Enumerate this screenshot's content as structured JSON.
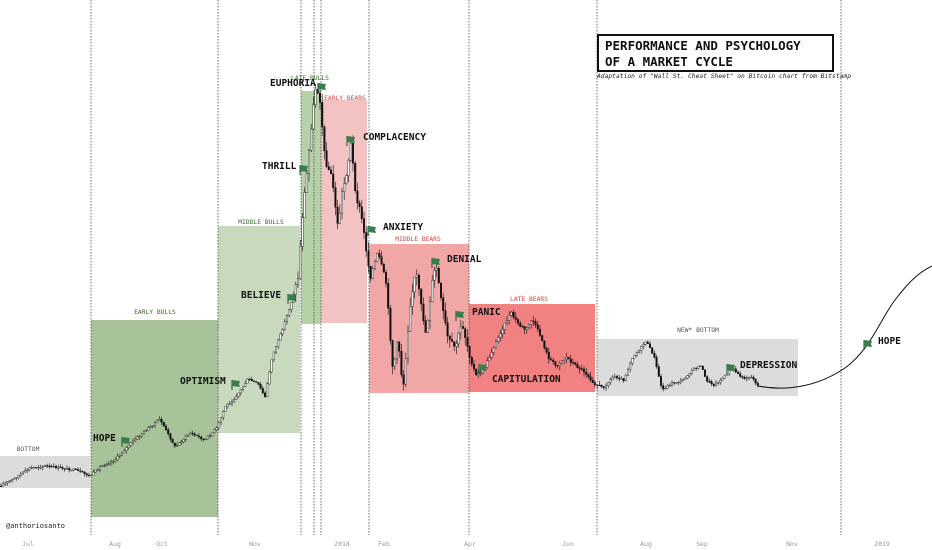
{
  "title": "PERFORMANCE AND PSYCHOLOGY\nOF A MARKET CYCLE",
  "subtitle": "Adaptation of \"Wall St. Cheat Sheet\" on Bitcoin chart from Bitstamp",
  "credit": "@anthoriosanto",
  "colors": {
    "bull_early": "#a8c39a",
    "bull_middle": "#c9d9be",
    "bull_late": "#b6d1a8",
    "bear_early": "#f3c2c2",
    "bear_middle": "#f2a7a7",
    "bear_late": "#f28282",
    "bottom": "#dcdcdc",
    "flag": "#3a7d4d",
    "bull_text": "#3a6b2c",
    "bear_text": "#d04848",
    "neutral_text": "#555555"
  },
  "chart_data": {
    "type": "line",
    "x_axis_ticks": [
      "Jul",
      "Aug",
      "Oct",
      "Nov",
      "2018",
      "Feb",
      "Apr",
      "Jun",
      "Aug",
      "Sep",
      "Nov",
      "2019"
    ],
    "zones": [
      {
        "label": "BOTTOM",
        "kind": "bottom"
      },
      {
        "label": "EARLY BULLS",
        "kind": "bull_early"
      },
      {
        "label": "MIDDLE BULLS",
        "kind": "bull_middle"
      },
      {
        "label": "LATE BULLS",
        "kind": "bull_late"
      },
      {
        "label": "EARLY BEARS",
        "kind": "bear_early"
      },
      {
        "label": "MIDDLE BEARS",
        "kind": "bear_middle"
      },
      {
        "label": "LATE BEARS",
        "kind": "bear_late"
      },
      {
        "label": "NEW* BOTTOM",
        "kind": "bottom"
      }
    ],
    "stages": [
      "HOPE",
      "OPTIMISM",
      "BELIEVE",
      "THRILL",
      "EUPHORIA",
      "COMPLACENCY",
      "ANXIETY",
      "DENIAL",
      "PANIC",
      "CAPITULATION",
      "DEPRESSION",
      "HOPE"
    ]
  }
}
